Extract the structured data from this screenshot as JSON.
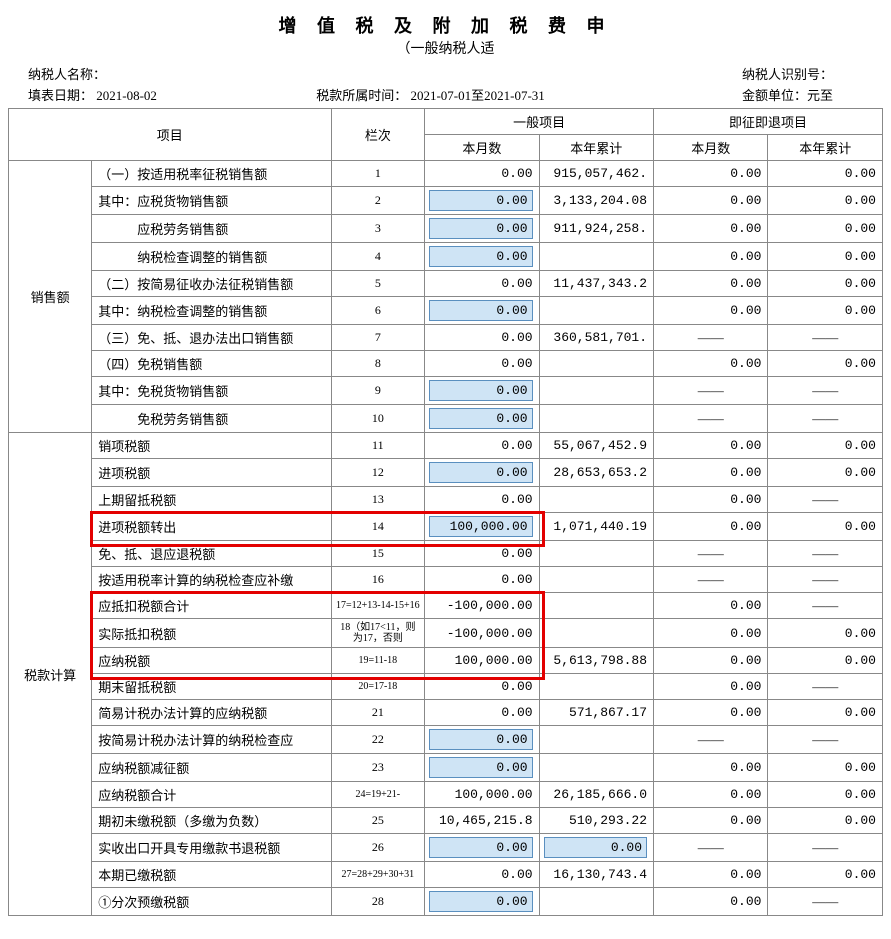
{
  "title": "增 值 税 及 附 加 税 费 申",
  "subtitle": "（一般纳税人适",
  "meta": {
    "taxpayer_name_label": "纳税人名称：",
    "taxpayer_id_label": "纳税人识别号：",
    "fill_date_label": "填表日期：",
    "fill_date": "2021-08-02",
    "period_label": "税款所属时间：",
    "period": "2021-07-01至2021-07-31",
    "unit_label": "金额单位：元至"
  },
  "header": {
    "item": "项目",
    "col_idx": "栏次",
    "general": "一般项目",
    "refund": "即征即退项目",
    "month": "本月数",
    "year": "本年累计"
  },
  "sections": {
    "sales": "销售额",
    "tax_calc": "税款计算"
  },
  "rows": [
    {
      "sec": "sales",
      "name": "（一）按适用税率征税销售额",
      "idx": "1",
      "gm": "0.00",
      "gm_edit": false,
      "gy": "915,057,462.",
      "rm": "0.00",
      "ry": "0.00"
    },
    {
      "sec": "sales",
      "name": "其中：应税货物销售额",
      "idx": "2",
      "gm": "0.00",
      "gm_edit": true,
      "gy": "3,133,204.08",
      "rm": "0.00",
      "ry": "0.00"
    },
    {
      "sec": "sales",
      "name": "　　　应税劳务销售额",
      "idx": "3",
      "gm": "0.00",
      "gm_edit": true,
      "gy": "911,924,258.",
      "rm": "0.00",
      "ry": "0.00"
    },
    {
      "sec": "sales",
      "name": "　　　纳税检查调整的销售额",
      "idx": "4",
      "gm": "0.00",
      "gm_edit": true,
      "gy": "",
      "rm": "0.00",
      "ry": "0.00"
    },
    {
      "sec": "sales",
      "name": "（二）按简易征收办法征税销售额",
      "idx": "5",
      "gm": "0.00",
      "gm_edit": false,
      "gy": "11,437,343.2",
      "rm": "0.00",
      "ry": "0.00"
    },
    {
      "sec": "sales",
      "name": "其中：纳税检查调整的销售额",
      "idx": "6",
      "gm": "0.00",
      "gm_edit": true,
      "gy": "",
      "rm": "0.00",
      "ry": "0.00"
    },
    {
      "sec": "sales",
      "name": "（三）免、抵、退办法出口销售额",
      "idx": "7",
      "gm": "0.00",
      "gm_edit": false,
      "gy": "360,581,701.",
      "rm": "——",
      "ry": "——",
      "dash": true
    },
    {
      "sec": "sales",
      "name": "（四）免税销售额",
      "idx": "8",
      "gm": "0.00",
      "gm_edit": false,
      "gy": "",
      "rm": "0.00",
      "ry": "0.00"
    },
    {
      "sec": "sales",
      "name": "其中：免税货物销售额",
      "idx": "9",
      "gm": "0.00",
      "gm_edit": true,
      "gy": "",
      "rm": "——",
      "ry": "——",
      "dash": true
    },
    {
      "sec": "sales",
      "name": "　　　免税劳务销售额",
      "idx": "10",
      "gm": "0.00",
      "gm_edit": true,
      "gy": "",
      "rm": "——",
      "ry": "——",
      "dash": true
    },
    {
      "sec": "tax",
      "name": "销项税额",
      "idx": "11",
      "gm": "0.00",
      "gm_edit": false,
      "gy": "55,067,452.9",
      "rm": "0.00",
      "ry": "0.00"
    },
    {
      "sec": "tax",
      "name": "进项税额",
      "idx": "12",
      "gm": "0.00",
      "gm_edit": true,
      "gy": "28,653,653.2",
      "rm": "0.00",
      "ry": "0.00"
    },
    {
      "sec": "tax",
      "name": "上期留抵税额",
      "idx": "13",
      "gm": "0.00",
      "gm_edit": false,
      "gy": "",
      "rm": "0.00",
      "ry": "——",
      "ry_dash": true
    },
    {
      "sec": "tax",
      "name": "进项税额转出",
      "idx": "14",
      "gm": "100,000.00",
      "gm_edit": true,
      "gy": "1,071,440.19",
      "rm": "0.00",
      "ry": "0.00",
      "hl": "row14"
    },
    {
      "sec": "tax",
      "name": "免、抵、退应退税额",
      "idx": "15",
      "gm": "0.00",
      "gm_edit": false,
      "gy": "",
      "rm": "——",
      "ry": "——",
      "dash": true
    },
    {
      "sec": "tax",
      "name": "按适用税率计算的纳税检查应补缴",
      "idx": "16",
      "gm": "0.00",
      "gm_edit": false,
      "gy": "",
      "rm": "——",
      "ry": "——",
      "dash": true
    },
    {
      "sec": "tax",
      "name": "应抵扣税额合计",
      "idx": "17=12+13-14-15+16",
      "gm": "-100,000.00",
      "gm_edit": false,
      "gy": "",
      "rm": "0.00",
      "ry": "——",
      "ry_dash": true,
      "hl": "block"
    },
    {
      "sec": "tax",
      "name": "实际抵扣税额",
      "idx": "18（如17<11，则为17，否则",
      "gm": "-100,000.00",
      "gm_edit": false,
      "gy": "",
      "rm": "0.00",
      "ry": "0.00",
      "hl": "block"
    },
    {
      "sec": "tax",
      "name": "应纳税额",
      "idx": "19=11-18",
      "gm": "100,000.00",
      "gm_edit": false,
      "gy": "5,613,798.88",
      "rm": "0.00",
      "ry": "0.00",
      "hl": "block"
    },
    {
      "sec": "tax",
      "name": "期末留抵税额",
      "idx": "20=17-18",
      "gm": "0.00",
      "gm_edit": false,
      "gy": "",
      "rm": "0.00",
      "ry": "——",
      "ry_dash": true
    },
    {
      "sec": "tax",
      "name": "简易计税办法计算的应纳税额",
      "idx": "21",
      "gm": "0.00",
      "gm_edit": false,
      "gy": "571,867.17",
      "rm": "0.00",
      "ry": "0.00"
    },
    {
      "sec": "tax",
      "name": "按简易计税办法计算的纳税检查应",
      "idx": "22",
      "gm": "0.00",
      "gm_edit": true,
      "gy": "",
      "rm": "——",
      "ry": "——",
      "dash": true
    },
    {
      "sec": "tax",
      "name": "应纳税额减征额",
      "idx": "23",
      "gm": "0.00",
      "gm_edit": true,
      "gy": "",
      "rm": "0.00",
      "ry": "0.00"
    },
    {
      "sec": "tax",
      "name": "应纳税额合计",
      "idx": "24=19+21-",
      "gm": "100,000.00",
      "gm_edit": false,
      "gy": "26,185,666.0",
      "rm": "0.00",
      "ry": "0.00"
    },
    {
      "sec": "tax",
      "name": "期初未缴税额（多缴为负数）",
      "idx": "25",
      "gm": "10,465,215.8",
      "gm_edit": false,
      "gy": "510,293.22",
      "rm": "0.00",
      "ry": "0.00"
    },
    {
      "sec": "tax",
      "name": "实收出口开具专用缴款书退税额",
      "idx": "26",
      "gm": "0.00",
      "gm_edit": true,
      "gy": "0.00",
      "gy_edit": true,
      "rm": "——",
      "ry": "——",
      "dash": true
    },
    {
      "sec": "tax",
      "name": "本期已缴税额",
      "idx": "27=28+29+30+31",
      "gm": "0.00",
      "gm_edit": false,
      "gy": "16,130,743.4",
      "rm": "0.00",
      "ry": "0.00"
    },
    {
      "sec": "tax",
      "name": "①分次预缴税额",
      "idx": "28",
      "gm": "0.00",
      "gm_edit": true,
      "gy": "",
      "rm": "0.00",
      "ry": "——",
      "ry_dash": true
    }
  ],
  "highlight_boxes": {
    "row14": {
      "comment": "around 进项税额转出 name+idx+gm cells"
    },
    "block17_19": {
      "comment": "around rows 17-19 name+idx+gm cells"
    }
  },
  "colors": {
    "border": "#888888",
    "editable_bg": "#cfe4f5",
    "editable_border": "#5a8fbf",
    "highlight": "#e30000"
  }
}
